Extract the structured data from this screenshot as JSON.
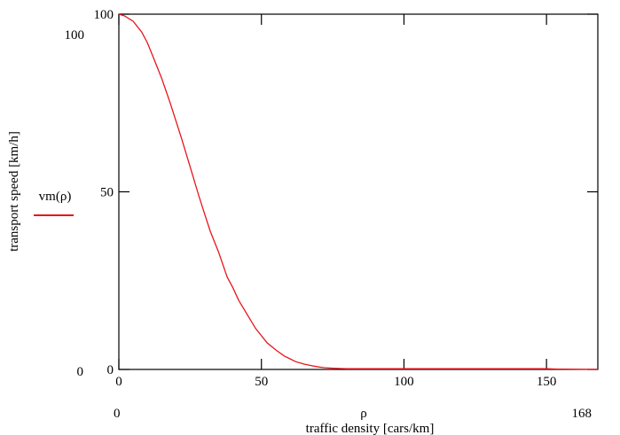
{
  "chart_data": {
    "type": "line",
    "xlabel": "traffic density [cars/km]",
    "x_variable": "ρ",
    "ylabel": "transport speed [km/h]",
    "xlim": [
      0,
      168
    ],
    "ylim": [
      0,
      100
    ],
    "x_ticks": [
      0,
      50,
      100,
      150
    ],
    "y_ticks": [
      0,
      50,
      100
    ],
    "x_range_labels": {
      "min": "0",
      "max": "168"
    },
    "y_range_labels": {
      "min": "0",
      "max": "100"
    },
    "legend": {
      "position": "left",
      "entries": [
        {
          "label": "vm(ρ)",
          "color": "#e8141b"
        }
      ]
    },
    "series": [
      {
        "name": "vm(ρ)",
        "color": "#e8141b",
        "x": [
          0,
          2,
          5,
          8,
          10,
          12,
          15,
          18,
          20,
          22,
          25,
          28,
          30,
          32,
          35,
          38,
          40,
          42,
          45,
          48,
          50,
          52,
          55,
          58,
          60,
          62,
          65,
          68,
          70,
          72,
          75,
          78,
          80,
          82,
          85,
          90,
          100,
          110,
          120,
          130,
          140,
          150,
          154,
          168
        ],
        "y": [
          100,
          99.5,
          98,
          95,
          92,
          88,
          82,
          75,
          70,
          65,
          57,
          49,
          44,
          39,
          33,
          26,
          23,
          19.5,
          15.5,
          11.5,
          9.5,
          7.5,
          5.5,
          3.8,
          3,
          2.2,
          1.5,
          1,
          0.7,
          0.5,
          0.35,
          0.25,
          0.2,
          0.2,
          0.2,
          0.2,
          0.2,
          0.2,
          0.2,
          0.2,
          0.2,
          0.2,
          0.1,
          0
        ]
      }
    ],
    "grid": false
  }
}
